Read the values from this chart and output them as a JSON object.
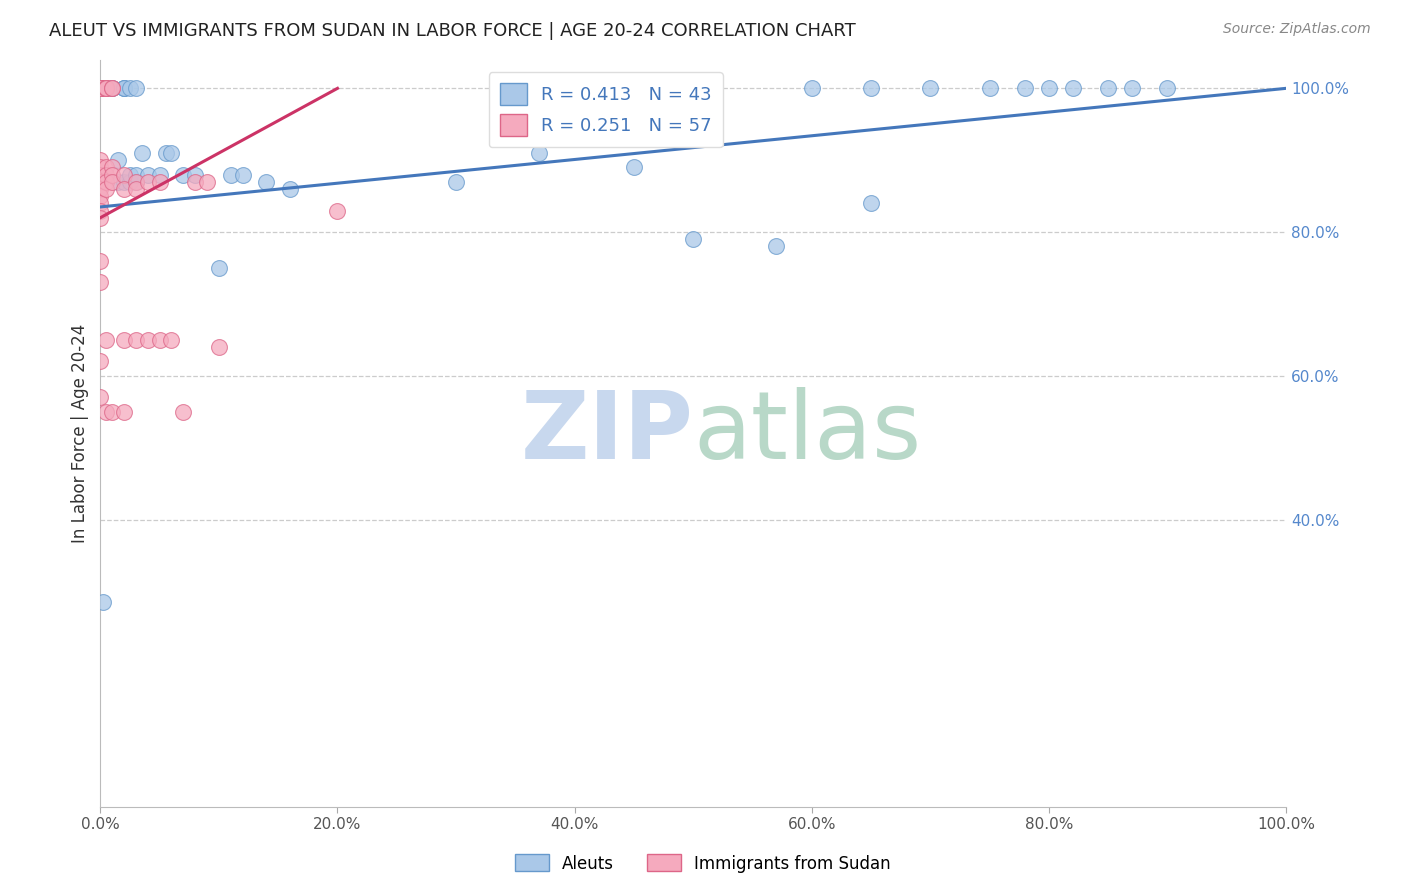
{
  "title": "ALEUT VS IMMIGRANTS FROM SUDAN IN LABOR FORCE | AGE 20-24 CORRELATION CHART",
  "source": "Source: ZipAtlas.com",
  "ylabel": "In Labor Force | Age 20-24",
  "xlim": [
    0,
    1
  ],
  "ylim": [
    0,
    1.04
  ],
  "xticks": [
    0.0,
    0.2,
    0.4,
    0.6,
    0.8,
    1.0
  ],
  "yticks_right": [
    0.4,
    0.6,
    0.8,
    1.0
  ],
  "xticklabels": [
    "0.0%",
    "20.0%",
    "40.0%",
    "60.0%",
    "80.0%",
    "100.0%"
  ],
  "yticklabels_right": [
    "40.0%",
    "60.0%",
    "80.0%",
    "100.0%"
  ],
  "aleuts_R": 0.413,
  "aleuts_N": 43,
  "sudan_R": 0.251,
  "sudan_N": 57,
  "aleuts_color": "#aac8e8",
  "sudan_color": "#f5aabe",
  "aleuts_edge_color": "#6699cc",
  "sudan_edge_color": "#dd6688",
  "aleuts_line_color": "#4477bb",
  "sudan_line_color": "#cc3366",
  "watermark_zip_color": "#c8d8ee",
  "watermark_atlas_color": "#b8d8c8",
  "background_color": "#ffffff",
  "grid_color": "#cccccc",
  "title_color": "#222222",
  "right_tick_color": "#5588cc",
  "aleuts_x": [
    0.002,
    0.01,
    0.01,
    0.015,
    0.015,
    0.02,
    0.02,
    0.02,
    0.02,
    0.025,
    0.025,
    0.025,
    0.03,
    0.03,
    0.03,
    0.035,
    0.04,
    0.05,
    0.055,
    0.06,
    0.07,
    0.08,
    0.1,
    0.11,
    0.12,
    0.14,
    0.16,
    0.3,
    0.37,
    0.45,
    0.5,
    0.57,
    0.6,
    0.65,
    0.65,
    0.7,
    0.75,
    0.78,
    0.8,
    0.82,
    0.85,
    0.87,
    0.9
  ],
  "aleuts_y": [
    0.285,
    1.0,
    1.0,
    0.87,
    0.9,
    1.0,
    1.0,
    1.0,
    0.87,
    0.87,
    0.88,
    1.0,
    0.87,
    0.88,
    1.0,
    0.91,
    0.88,
    0.88,
    0.91,
    0.91,
    0.88,
    0.88,
    0.75,
    0.88,
    0.88,
    0.87,
    0.86,
    0.87,
    0.91,
    0.89,
    0.79,
    0.78,
    1.0,
    1.0,
    0.84,
    1.0,
    1.0,
    1.0,
    1.0,
    1.0,
    1.0,
    1.0,
    1.0
  ],
  "sudan_x": [
    0.0,
    0.0,
    0.0,
    0.0,
    0.0,
    0.0,
    0.0,
    0.0,
    0.0,
    0.0,
    0.0,
    0.0,
    0.0,
    0.0,
    0.0,
    0.0,
    0.0,
    0.0,
    0.0,
    0.0,
    0.0,
    0.0,
    0.0,
    0.0,
    0.005,
    0.005,
    0.005,
    0.005,
    0.005,
    0.005,
    0.005,
    0.005,
    0.005,
    0.005,
    0.01,
    0.01,
    0.01,
    0.01,
    0.01,
    0.01,
    0.02,
    0.02,
    0.02,
    0.02,
    0.03,
    0.03,
    0.03,
    0.04,
    0.04,
    0.05,
    0.05,
    0.06,
    0.07,
    0.08,
    0.09,
    0.1,
    0.2
  ],
  "sudan_y": [
    1.0,
    1.0,
    1.0,
    1.0,
    1.0,
    1.0,
    1.0,
    1.0,
    1.0,
    1.0,
    1.0,
    0.9,
    0.89,
    0.88,
    0.87,
    0.86,
    0.85,
    0.84,
    0.83,
    0.82,
    0.76,
    0.73,
    0.62,
    0.57,
    1.0,
    1.0,
    1.0,
    1.0,
    0.89,
    0.88,
    0.87,
    0.86,
    0.65,
    0.55,
    1.0,
    1.0,
    0.89,
    0.88,
    0.87,
    0.55,
    0.88,
    0.86,
    0.65,
    0.55,
    0.87,
    0.86,
    0.65,
    0.87,
    0.65,
    0.87,
    0.65,
    0.65,
    0.55,
    0.87,
    0.87,
    0.64,
    0.83
  ]
}
